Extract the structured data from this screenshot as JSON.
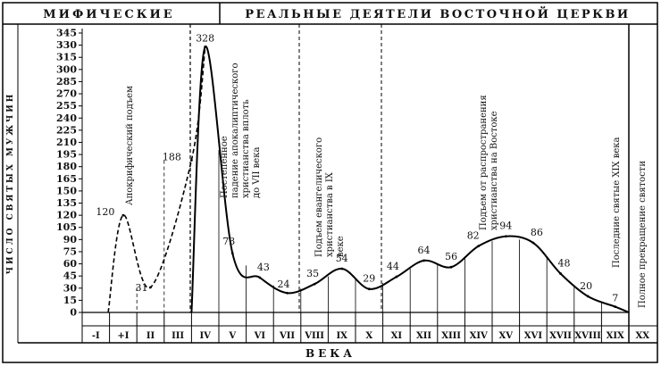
{
  "header": {
    "left": "МИФИЧЕСКИЕ",
    "right": "РЕАЛЬНЫЕ ДЕЯТЕЛИ ВОСТОЧНОЙ ЦЕРКВИ"
  },
  "chart_data": {
    "type": "line",
    "ylabel": "ЧИСЛО СВЯТЫХ МУЖЧИН",
    "xlabel": "ВЕКА",
    "y_ticks": [
      "0",
      "15",
      "30",
      "45",
      "60",
      "75",
      "90",
      "105",
      "120",
      "135",
      "150",
      "165",
      "180",
      "195",
      "210",
      "225",
      "240",
      "255",
      "270",
      "285",
      "300",
      "315",
      "330",
      "345"
    ],
    "ylim": [
      0,
      345
    ],
    "categories": [
      "-I",
      "+I",
      "II",
      "III",
      "IV",
      "V",
      "VI",
      "VII",
      "VIII",
      "IX",
      "X",
      "XI",
      "XII",
      "XIII",
      "XIV",
      "XV",
      "XVI",
      "XVII",
      "XVIII",
      "XIX",
      "XX"
    ],
    "mythical_values": [
      120,
      31,
      188
    ],
    "mythical_points": [
      {
        "x": 1.5,
        "y": 120
      },
      {
        "x": 2.5,
        "y": 31
      },
      {
        "x": 4.0,
        "y": 188
      }
    ],
    "real_points": [
      {
        "x": 4.5,
        "y": 328
      },
      {
        "x": 5.5,
        "y": 73
      },
      {
        "x": 6.5,
        "y": 43
      },
      {
        "x": 7.5,
        "y": 24
      },
      {
        "x": 8.5,
        "y": 35
      },
      {
        "x": 9.5,
        "y": 54
      },
      {
        "x": 10.5,
        "y": 29
      },
      {
        "x": 11.5,
        "y": 44
      },
      {
        "x": 12.5,
        "y": 64
      },
      {
        "x": 13.5,
        "y": 56
      },
      {
        "x": 14.5,
        "y": 82
      },
      {
        "x": 15.5,
        "y": 94
      },
      {
        "x": 16.5,
        "y": 86
      },
      {
        "x": 17.5,
        "y": 48
      },
      {
        "x": 18.5,
        "y": 20
      },
      {
        "x": 19.5,
        "y": 7
      }
    ],
    "annotations": [
      {
        "text": "Апокрифический подъем"
      },
      {
        "text": "Постепенное падение апокалиптического христианства вплоть до VII века"
      },
      {
        "text": "Подъем евангелического христианства в IX веке"
      },
      {
        "text": "Подъем от распространения христианства на Востоке"
      },
      {
        "text": "Последние святые XIX века"
      },
      {
        "text": "Полное прекращение святости"
      }
    ]
  }
}
